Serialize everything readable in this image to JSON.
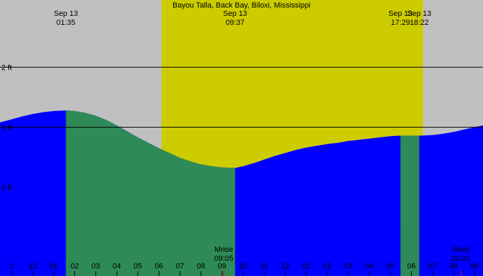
{
  "chart_data": {
    "type": "area",
    "title": "Bayou Talla, Back Bay, Biloxi, Mississippi",
    "y_unit": "ft",
    "ylim": [
      -1.48,
      3.12
    ],
    "y_ticks": [
      {
        "value": 0,
        "label": "0 ft"
      },
      {
        "value": 1,
        "label": "1 ft"
      },
      {
        "value": 2,
        "label": "2 ft"
      }
    ],
    "x_unit": "hours since 00:00 Sep 13",
    "xlim": [
      -2.55,
      20.4
    ],
    "x_ticks": [
      {
        "h": -2,
        "label": "1"
      },
      {
        "h": -1,
        "label": "12"
      },
      {
        "h": 0,
        "label": "01"
      },
      {
        "h": 1,
        "label": "02"
      },
      {
        "h": 2,
        "label": "03"
      },
      {
        "h": 3,
        "label": "04"
      },
      {
        "h": 4,
        "label": "05"
      },
      {
        "h": 5,
        "label": "06"
      },
      {
        "h": 6,
        "label": "07"
      },
      {
        "h": 7,
        "label": "08"
      },
      {
        "h": 8,
        "label": "09"
      },
      {
        "h": 9,
        "label": "10"
      },
      {
        "h": 10,
        "label": "11"
      },
      {
        "h": 11,
        "label": "12"
      },
      {
        "h": 12,
        "label": "01"
      },
      {
        "h": 13,
        "label": "02"
      },
      {
        "h": 14,
        "label": "03"
      },
      {
        "h": 15,
        "label": "04"
      },
      {
        "h": 16,
        "label": "05"
      },
      {
        "h": 17,
        "label": "06"
      },
      {
        "h": 18,
        "label": "07"
      },
      {
        "h": 19,
        "label": "08"
      },
      {
        "h": 20,
        "label": "09"
      }
    ],
    "daylight": {
      "start": 5.12,
      "end": 17.55
    },
    "events": [
      {
        "h": 0.58,
        "date": "Sep 13",
        "time": "01:35"
      },
      {
        "h": 8.62,
        "date": "Sep 13",
        "time": "09:37"
      },
      {
        "h": 16.48,
        "date": "Sep 13",
        "time": "17:29"
      },
      {
        "h": 17.37,
        "date": "Sep 13",
        "time": "18:22"
      }
    ],
    "moon": [
      {
        "h": 8.08,
        "label": "Mrise",
        "time": "09:05"
      },
      {
        "h": 19.35,
        "label": "Mset",
        "time": "20:21"
      }
    ],
    "tide": {
      "x": [
        -2.55,
        -2,
        -1.5,
        -1,
        -0.5,
        0,
        0.58,
        1,
        1.5,
        2,
        2.5,
        3,
        3.5,
        4,
        4.5,
        5,
        5.5,
        6,
        6.5,
        7,
        7.5,
        8,
        8.62,
        9,
        9.5,
        10,
        10.5,
        11,
        11.5,
        12,
        12.5,
        13,
        13.5,
        14,
        14.5,
        15,
        15.5,
        16,
        16.48,
        17,
        17.37,
        17.5,
        18,
        18.5,
        19,
        19.5,
        20,
        20.4
      ],
      "y": [
        1.08,
        1.13,
        1.18,
        1.22,
        1.25,
        1.27,
        1.28,
        1.27,
        1.24,
        1.19,
        1.12,
        1.03,
        0.93,
        0.83,
        0.74,
        0.65,
        0.57,
        0.49,
        0.43,
        0.38,
        0.35,
        0.33,
        0.32,
        0.35,
        0.4,
        0.46,
        0.52,
        0.57,
        0.62,
        0.66,
        0.69,
        0.72,
        0.74,
        0.77,
        0.79,
        0.81,
        0.83,
        0.85,
        0.86,
        0.86,
        0.86,
        0.86,
        0.87,
        0.89,
        0.92,
        0.96,
        1,
        1.03
      ]
    },
    "falling_segments": [
      [
        0.58,
        8.62
      ],
      [
        16.48,
        17.37
      ]
    ]
  },
  "colors": {
    "night": "#c0c0c0",
    "daylight": "#cccc00",
    "rising": "#0000ff",
    "falling": "#2e8b57",
    "moon_marker": "#ff0000"
  }
}
